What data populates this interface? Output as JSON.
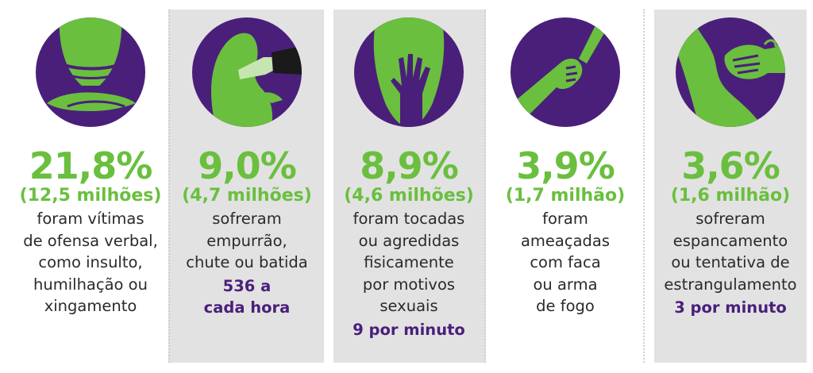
{
  "stats": [
    {
      "icon": "covered-mouth-icon",
      "percent": "21,8%",
      "millions": "(12,5 milhões)",
      "lines": [
        "foram vítimas",
        "de ofensa verbal,",
        "como insulto,",
        "humilhação ou",
        "xingamento"
      ],
      "rate": ""
    },
    {
      "icon": "pushed-face-icon",
      "percent": "9,0%",
      "millions": "(4,7 milhões)",
      "lines": [
        "sofreram",
        "empurrão,",
        "chute ou batida"
      ],
      "rate": [
        "536 a",
        "cada hora"
      ]
    },
    {
      "icon": "raised-hand-icon",
      "percent": "8,9%",
      "millions": "(4,6 milhões)",
      "lines": [
        "foram tocadas",
        "ou agredidas",
        "fisicamente",
        "por motivos",
        "sexuais"
      ],
      "rate": [
        "9 por minuto"
      ]
    },
    {
      "icon": "knife-hand-icon",
      "percent": "3,9%",
      "millions": "(1,7 milhão)",
      "lines": [
        "foram",
        "ameaçadas",
        "com faca",
        "ou arma",
        "de fogo"
      ],
      "rate": ""
    },
    {
      "icon": "strangling-hand-icon",
      "percent": "3,6%",
      "millions": "(1,6 milhão)",
      "lines": [
        "sofreram",
        "espancamento",
        "ou tentativa de",
        "estrangulamento"
      ],
      "rate": [
        "3 por minuto"
      ]
    }
  ],
  "colors": {
    "green": "#6abf3e",
    "purple": "#4a1f7a",
    "panel": "#e2e2e2",
    "text": "#2a2a2a"
  }
}
